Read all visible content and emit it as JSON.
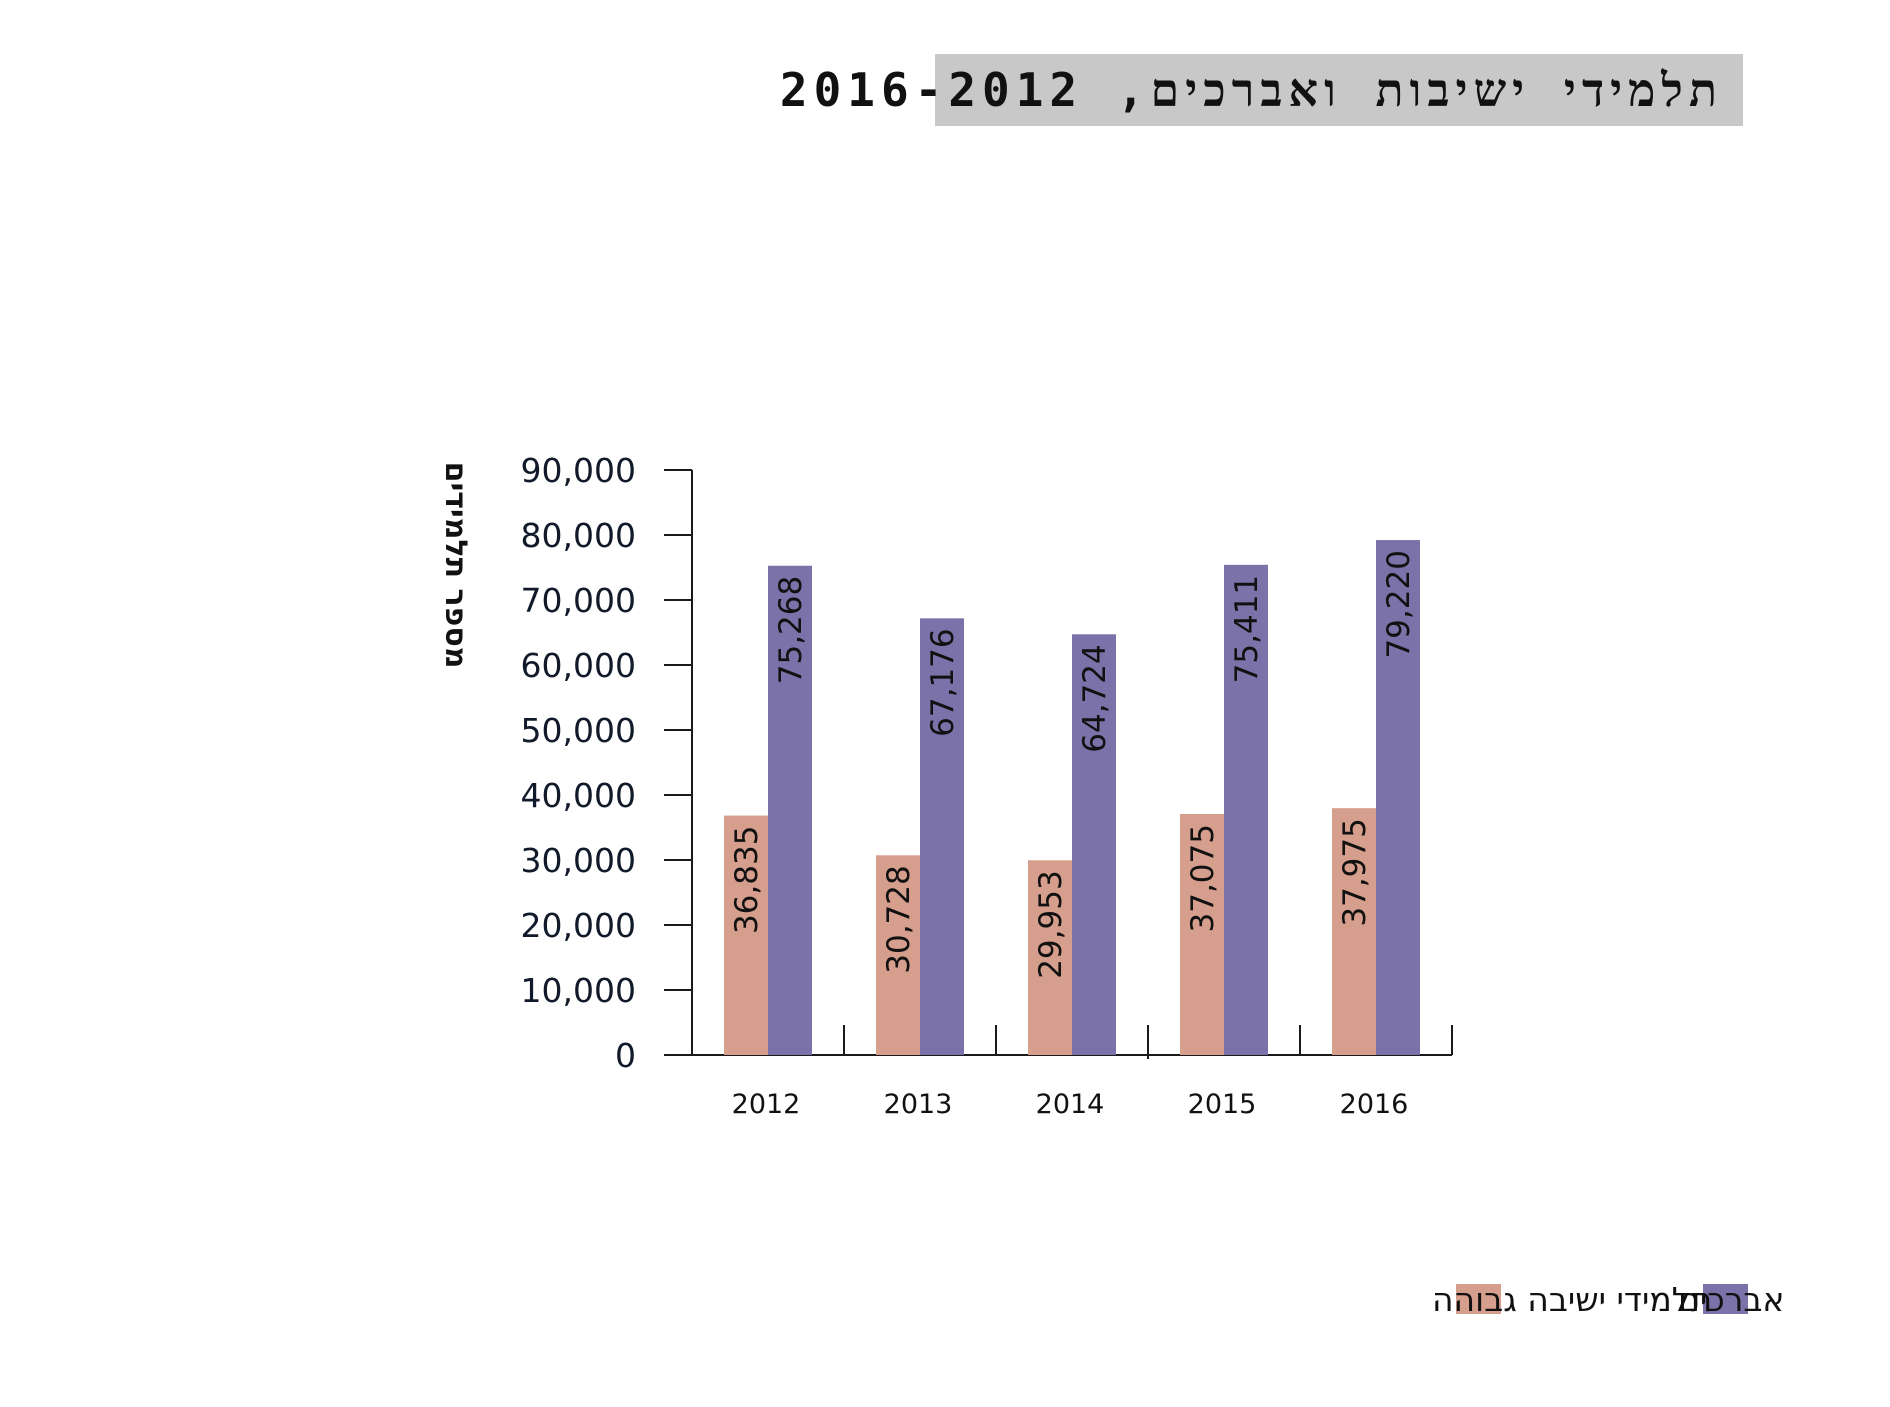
{
  "title": "תלמידי ישיבות ואברכים, 2016-2012",
  "colors": {
    "yeshiva": "#d69e8c",
    "avrechim": "#7a72a8",
    "axis": "#1a1a1a",
    "text": "#111a2a",
    "title_bg": "#c8c8c9"
  },
  "chart_data": {
    "type": "bar",
    "title": "תלמידי ישיבות ואברכים, 2016-2012",
    "ylabel": "מספר תלמידים",
    "xlabel": "",
    "ylim": [
      0,
      90000
    ],
    "yticks": [
      "0",
      "10,000",
      "20,000",
      "30,000",
      "40,000",
      "50,000",
      "60,000",
      "70,000",
      "80,000",
      "90,000"
    ],
    "categories": [
      "2012",
      "2013",
      "2014",
      "2015",
      "2016"
    ],
    "series": [
      {
        "name": "תלמידי ישיבה גבוהה",
        "values": [
          36835,
          30728,
          29953,
          37075,
          37975
        ],
        "labels": [
          "36,835",
          "30,728",
          "29,953",
          "37,075",
          "37,975"
        ]
      },
      {
        "name": "אברכים",
        "values": [
          75268,
          67176,
          64724,
          75411,
          79220
        ],
        "labels": [
          "75,268",
          "67,176",
          "64,724",
          "75,411",
          "79,220"
        ]
      }
    ],
    "grid": false,
    "legend": "bottom-right"
  }
}
